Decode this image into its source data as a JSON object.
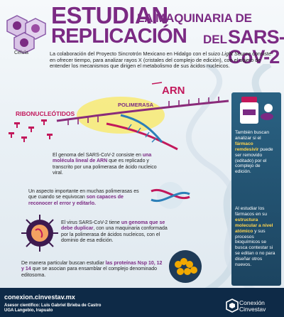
{
  "header": {
    "estudian": "ESTUDIAN",
    "la_maquinaria_de": "LA MAQUINARIA DE",
    "replicacion": "REPLICACIÓN",
    "del": "DEL",
    "sars": "SARS-CoV-2"
  },
  "cell_label": "Célula",
  "intro": {
    "part1": "La colaboración del Proyecto Sincrotrón Mexicano en Hidalgo con el suizo ",
    "light_source": "Light Source",
    "part2": " consiste en ofrecer tiempo, para analizar rayos X (cristales del complejo de edición), con el objeto de entender los mecanismos que dirigen el metabolismo de sus ácidos nucleicos."
  },
  "diagram": {
    "arn": "ARN",
    "polimerasa": "POLIMERASA",
    "ribonucleotidos": "RIBONUCLEÓTIDOS"
  },
  "genoma": {
    "a": "El genoma del SARS-CoV-2 consiste en ",
    "b": "una molécula lineal de ARN",
    "c": " que es replicado y transcrito por una polimerasa de ácido nucleico viral."
  },
  "aspecto": {
    "a": "Un aspecto importante en muchas polimerasas es que cuando se equivocan ",
    "b": "son capaces de reconocer el error y editarlo."
  },
  "virus": {
    "a": "El virus SARS-CoV-2 tiene ",
    "b": "un genoma que se debe duplicar",
    "c": ", con una maquinaria conformada por la polimerasa de ácidos nucleicos, con el dominio de esa edición."
  },
  "manera": {
    "a": "De manera particular buscan estudiar ",
    "b": "las proteínas Nsp 10, 12 y 14",
    "c": " que se asocian para ensamblar el complejo denominado editosoma."
  },
  "sidebar": {
    "tambien_a": "También buscan analizar si el ",
    "tambien_b": "fármaco remdesivir",
    "tambien_c": " puede ser removido (editado) por el complejo de edición.",
    "estudiar_a": "Al estudiar los fármacos en su ",
    "estudiar_b": "estructura molecular a nivel atómico",
    "estudiar_c": " y sus procesos bioquímicos se busca contestar si se editan o no para diseñar otros nuevos."
  },
  "footer": {
    "url": "conexion.cinvestav.mx",
    "asesor_label": "Asesor científico:",
    "asesor_name": " Luis Gabriel Brieba de Castro",
    "lab": "UGA Langebio, Irapuato",
    "logo_line1": "Conexión",
    "logo_line2": "Cinvestav"
  },
  "colors": {
    "title": "#7b2a83",
    "accent": "#c2185b",
    "footer": "#0e2a47",
    "sidebar": "#1f4e6b"
  }
}
